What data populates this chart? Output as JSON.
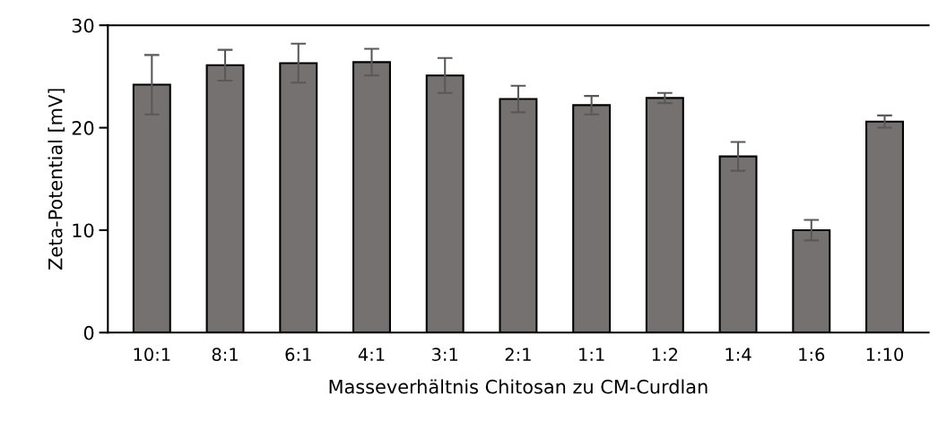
{
  "chart_data": {
    "type": "bar",
    "xlabel": "Masseverhältnis Chitosan zu CM-Curdlan",
    "ylabel": "Zeta-Potential [mV]",
    "categories": [
      "10:1",
      "8:1",
      "6:1",
      "4:1",
      "3:1",
      "2:1",
      "1:1",
      "1:2",
      "1:4",
      "1:6",
      "1:10"
    ],
    "values": [
      24.2,
      26.1,
      26.3,
      26.4,
      25.1,
      22.8,
      22.2,
      22.9,
      17.2,
      10.0,
      20.6
    ],
    "errors": [
      2.9,
      1.5,
      1.9,
      1.3,
      1.7,
      1.3,
      0.9,
      0.5,
      1.4,
      1.0,
      0.6
    ],
    "color": "#767171",
    "ylim": [
      0,
      30
    ],
    "yticks": [
      0,
      10,
      20,
      30
    ],
    "grid": false,
    "legend": false
  }
}
